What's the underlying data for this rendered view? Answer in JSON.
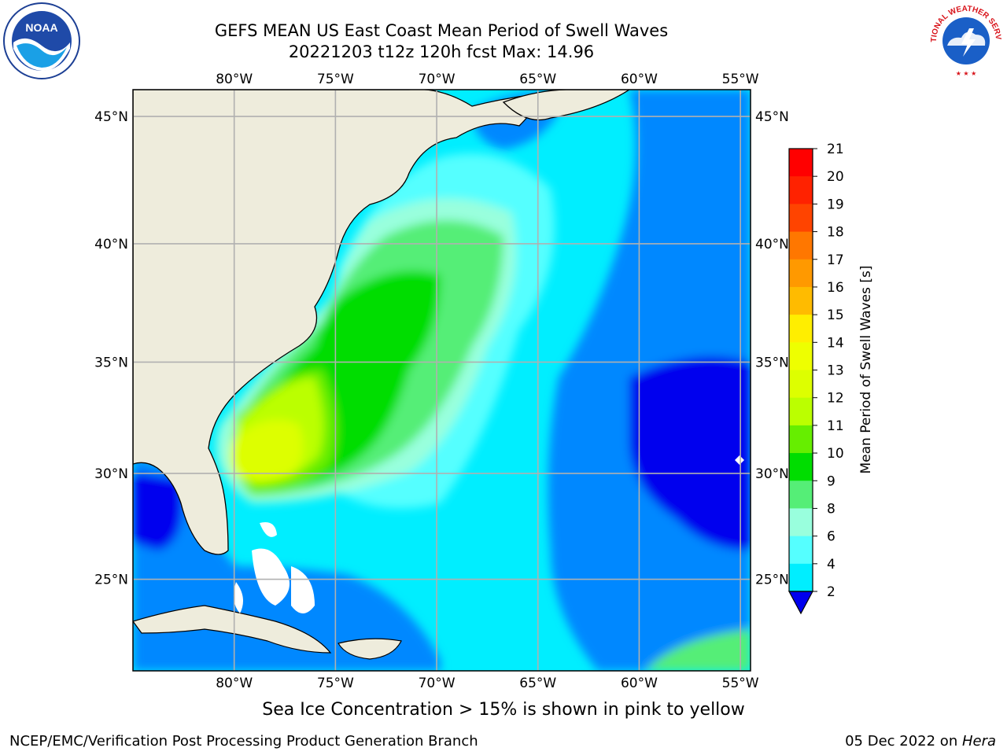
{
  "title_line1": "GEFS MEAN US East Coast Mean Period of Swell Waves",
  "title_line2": "20221203 t12z 120h fcst   Max: 14.96",
  "logos": {
    "left": {
      "icon": "noaa-logo-icon",
      "text": "NOAA"
    },
    "right": {
      "icon": "nws-logo-icon",
      "text": "NATIONAL WEATHER SERVICE"
    }
  },
  "map": {
    "lon_labels": [
      "80°W",
      "75°W",
      "70°W",
      "65°W",
      "60°W",
      "55°W"
    ],
    "lat_labels": [
      "45°N",
      "40°N",
      "35°N",
      "30°N",
      "25°N"
    ],
    "lon_range": [
      -85,
      -54.5
    ],
    "lat_range": [
      20.5,
      46
    ]
  },
  "colorbar": {
    "label": "Mean Period of Swell Waves [s]",
    "ticks": [
      "21",
      "20",
      "19",
      "18",
      "17",
      "16",
      "15",
      "14",
      "13",
      "12",
      "11",
      "10",
      "9",
      "8",
      "6",
      "4",
      "2"
    ],
    "colors": [
      "#ff0000",
      "#ff2200",
      "#ff4400",
      "#ff7700",
      "#ff9900",
      "#ffbb00",
      "#ffee00",
      "#eeff00",
      "#ddff00",
      "#bbff00",
      "#66ee00",
      "#00dd00",
      "#55ee77",
      "#99ffdd",
      "#55ffff",
      "#00eeff",
      "#0088ff"
    ],
    "under_color": "#0000ee"
  },
  "chart_data": {
    "type": "heatmap",
    "title": "GEFS MEAN US East Coast Mean Period of Swell Waves",
    "xlabel": "",
    "ylabel": "",
    "colorbar_label": "Mean Period of Swell Waves [s]",
    "max_value": 14.96,
    "xlim": [
      -85,
      -54.5
    ],
    "ylim": [
      20.5,
      46
    ],
    "legend": "right"
  },
  "subtitle": "Sea Ice Concentration > 15% is shown in pink to yellow",
  "footer": {
    "left": "NCEP/EMC/Verification Post Processing Product Generation Branch",
    "right_date": "05 Dec 2022 on ",
    "right_machine": "Hera"
  }
}
